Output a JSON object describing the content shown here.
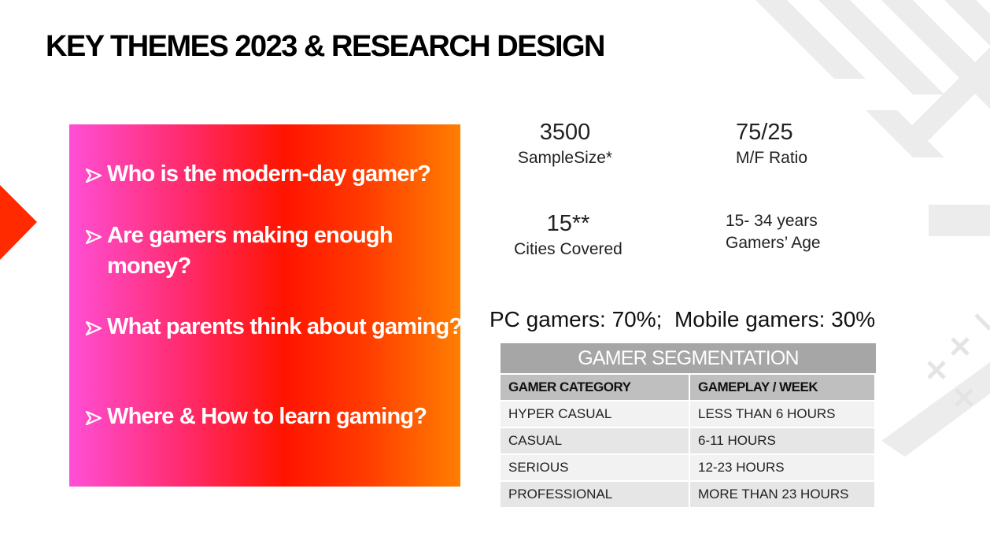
{
  "header": {
    "title": "KEY THEMES 2023 & RESEARCH DESIGN"
  },
  "questions": [
    "Who is the modern-day gamer?",
    "Are gamers making enough money?",
    "What parents think about gaming?",
    "Where & How to learn gaming?"
  ],
  "stats": [
    {
      "value": "3500",
      "label": "SampleSize*"
    },
    {
      "value": "75/25",
      "label": "M/F Ratio"
    },
    {
      "value": "15**",
      "label": "Cities Covered"
    },
    {
      "value": "15- 34 years",
      "label": "Gamers’ Age"
    }
  ],
  "split": "PC gamers: 70%;  Mobile gamers: 30%",
  "table": {
    "title": "GAMER SEGMENTATION",
    "columns": [
      "GAMER CATEGORY",
      "GAMEPLAY / WEEK"
    ],
    "rows": [
      [
        "HYPER CASUAL",
        "LESS THAN 6 HOURS"
      ],
      [
        "CASUAL",
        "6-11 HOURS"
      ],
      [
        "SERIOUS",
        "12-23 HOURS"
      ],
      [
        "PROFESSIONAL",
        "MORE THAN 23 HOURS"
      ]
    ]
  }
}
